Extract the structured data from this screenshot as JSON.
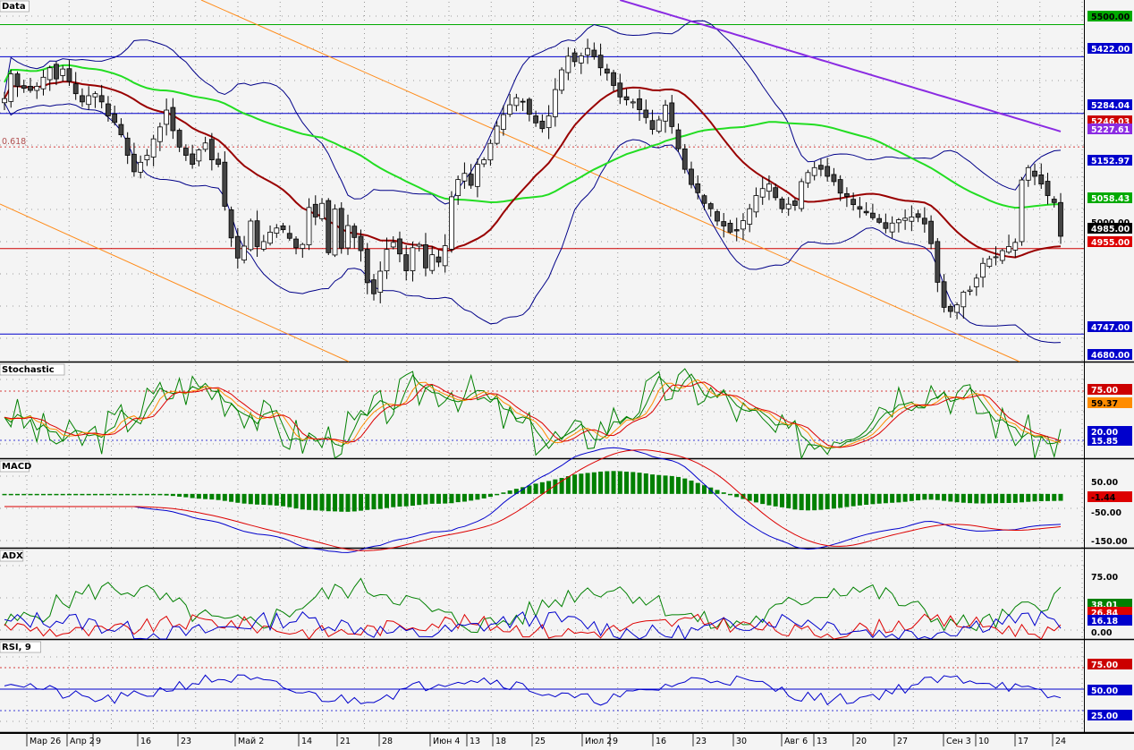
{
  "colors": {
    "background": "#f4f4f4",
    "grid": "#7f7f7f",
    "frame": "#000000",
    "price_line_blue": "#0000cc",
    "price_line_green": "#00aa00",
    "ma_red": "#990000",
    "ma_green": "#22dd22",
    "ma_purple": "#8a2be2",
    "bollinger": "#000088",
    "channel": "#ff8c1a",
    "fib": "#cc0000",
    "candle_up": "#ffffff",
    "candle_down": "#444444",
    "macd_hist": "#008000",
    "stoch_k": "#008000",
    "stoch_d": "#ff8c00",
    "stoch_slow": "#dd0000",
    "adx": "#008000",
    "di_plus": "#dd0000",
    "di_minus": "#0000cc",
    "rsi": "#0000cc"
  },
  "chart_data": [
    {
      "panel": "Data",
      "type": "candlestick",
      "title": "Data",
      "y_range": [
        4680,
        5560
      ],
      "y_ticks": [
        {
          "label": "5500.00",
          "color": "#00aa00",
          "text": "#000000"
        },
        {
          "label": "5422.00",
          "color": "#0000cc",
          "text": "#ffffff"
        },
        {
          "label": "5284.04",
          "color": "#0000cc",
          "text": "#ffffff"
        },
        {
          "label": "5246.03",
          "color": "#cc0000",
          "text": "#ffffff"
        },
        {
          "label": "5227.61",
          "color": "#8a2be2",
          "text": "#ffffff"
        },
        {
          "label": "5152.97",
          "color": "#0000cc",
          "text": "#ffffff"
        },
        {
          "label": "5058.43",
          "color": "#00aa00",
          "text": "#ffffff"
        },
        {
          "label": "5000.00",
          "color": "",
          "text": "#000000"
        },
        {
          "label": "4985.00",
          "color": "#000000",
          "text": "#ffffff"
        },
        {
          "label": "4955.00",
          "color": "#dd0000",
          "text": "#ffffff"
        },
        {
          "label": "4747.00",
          "color": "#0000cc",
          "text": "#ffffff"
        },
        {
          "label": "4680.00",
          "color": "#0000cc",
          "text": "#ffffff"
        }
      ],
      "levels": [
        5500,
        5422,
        5284.04,
        4955,
        4747
      ],
      "fib_level": {
        "label": "0.618",
        "value": 5246
      },
      "annotations": [
        "0.618"
      ]
    },
    {
      "panel": "Stochastic",
      "type": "line",
      "title": "Stochastic",
      "y_range": [
        0,
        100
      ],
      "levels": [
        75,
        20
      ],
      "y_ticks": [
        {
          "label": "75.00",
          "color": "#cc0000",
          "text": "#ffffff"
        },
        {
          "label": "59.37",
          "color": "#ff8c00",
          "text": "#000000"
        },
        {
          "label": "20.00",
          "color": "#0000cc",
          "text": "#ffffff"
        },
        {
          "label": "15.85",
          "color": "#0000cc",
          "text": "#ffffff"
        }
      ]
    },
    {
      "panel": "MACD",
      "type": "bar",
      "title": "MACD",
      "y_range": [
        -170,
        90
      ],
      "y_ticks": [
        {
          "label": "50.00",
          "color": "",
          "text": "#000000"
        },
        {
          "label": "-1.44",
          "color": "#dd0000",
          "text": "#000000"
        },
        {
          "label": "-50.00",
          "color": "",
          "text": "#000000"
        },
        {
          "label": "-150.00",
          "color": "",
          "text": "#000000"
        }
      ]
    },
    {
      "panel": "ADX",
      "type": "line",
      "title": "ADX",
      "y_range": [
        0,
        110
      ],
      "y_ticks": [
        {
          "label": "75.00",
          "color": "",
          "text": "#000000"
        },
        {
          "label": "38.01",
          "color": "#008000",
          "text": "#ffffff"
        },
        {
          "label": "26.84",
          "color": "#dd0000",
          "text": "#ffffff"
        },
        {
          "label": "16.18",
          "color": "#0000cc",
          "text": "#ffffff"
        },
        {
          "label": "0.00",
          "color": "",
          "text": "#000000"
        }
      ]
    },
    {
      "panel": "RSI",
      "type": "line",
      "title": "RSI, 9",
      "y_range": [
        0,
        100
      ],
      "levels": [
        75,
        50,
        25
      ],
      "y_ticks": [
        {
          "label": "75.00",
          "color": "#cc0000",
          "text": "#ffffff"
        },
        {
          "label": "50.00",
          "color": "#0000cc",
          "text": "#ffffff"
        },
        {
          "label": "25.00",
          "color": "#0000cc",
          "text": "#ffffff"
        }
      ]
    }
  ],
  "x_axis": {
    "labels": [
      "Мар 26",
      "Апр 2",
      "9",
      "16",
      "23",
      "Май 2",
      "14",
      "21",
      "28",
      "Июн 4",
      "13",
      "18",
      "25",
      "Июл 2",
      "9",
      "16",
      "23",
      "30",
      "Авг 6",
      "13",
      "20",
      "27",
      "Сен 3",
      "10",
      "17",
      "24"
    ]
  },
  "seed": {
    "closes": [
      5320,
      5380,
      5350,
      5345,
      5340,
      5350,
      5372,
      5395,
      5368,
      5392,
      5362,
      5332,
      5312,
      5327,
      5332,
      5312,
      5278,
      5262,
      5232,
      5182,
      5142,
      5165,
      5182,
      5222,
      5251,
      5292,
      5242,
      5202,
      5182,
      5160,
      5195,
      5212,
      5171,
      5160,
      5058,
      4981,
      4932,
      4961,
      5022,
      4960,
      4972,
      4995,
      5005,
      5001,
      4980,
      4957,
      4965,
      5055,
      5032,
      5065,
      4945,
      5051,
      4956,
      5011,
      4982,
      4950,
      4872,
      4845,
      4900,
      4953,
      4970,
      4942,
      4901,
      4957,
      4965,
      4908,
      4940,
      4922,
      4962,
      5081,
      5123,
      5138,
      5109,
      5160,
      5171,
      5211,
      5253,
      5281,
      5305,
      5322,
      5312,
      5282,
      5261,
      5247,
      5278,
      5342,
      5390,
      5423,
      5410,
      5424,
      5442,
      5422,
      5395,
      5382,
      5352,
      5324,
      5317,
      5312,
      5293,
      5274,
      5245,
      5268,
      5304,
      5252,
      5198,
      5148,
      5111,
      5091,
      5065,
      5052,
      5022,
      5010,
      4995,
      4998,
      5023,
      5052,
      5084,
      5101,
      5112,
      5079,
      5052,
      5063,
      5060,
      5118,
      5140,
      5152,
      5148,
      5131,
      5118,
      5090,
      5082,
      5062,
      5051,
      5042,
      5030,
      5019,
      5004,
      5017,
      5025,
      5029,
      5032,
      5031,
      5015,
      4967,
      4873,
      4812,
      4802,
      4818,
      4849,
      4854,
      4883,
      4919,
      4930,
      4935,
      4950,
      4960,
      4970,
      5122,
      5152,
      5131,
      5112,
      5084,
      5067,
      4985
    ]
  }
}
